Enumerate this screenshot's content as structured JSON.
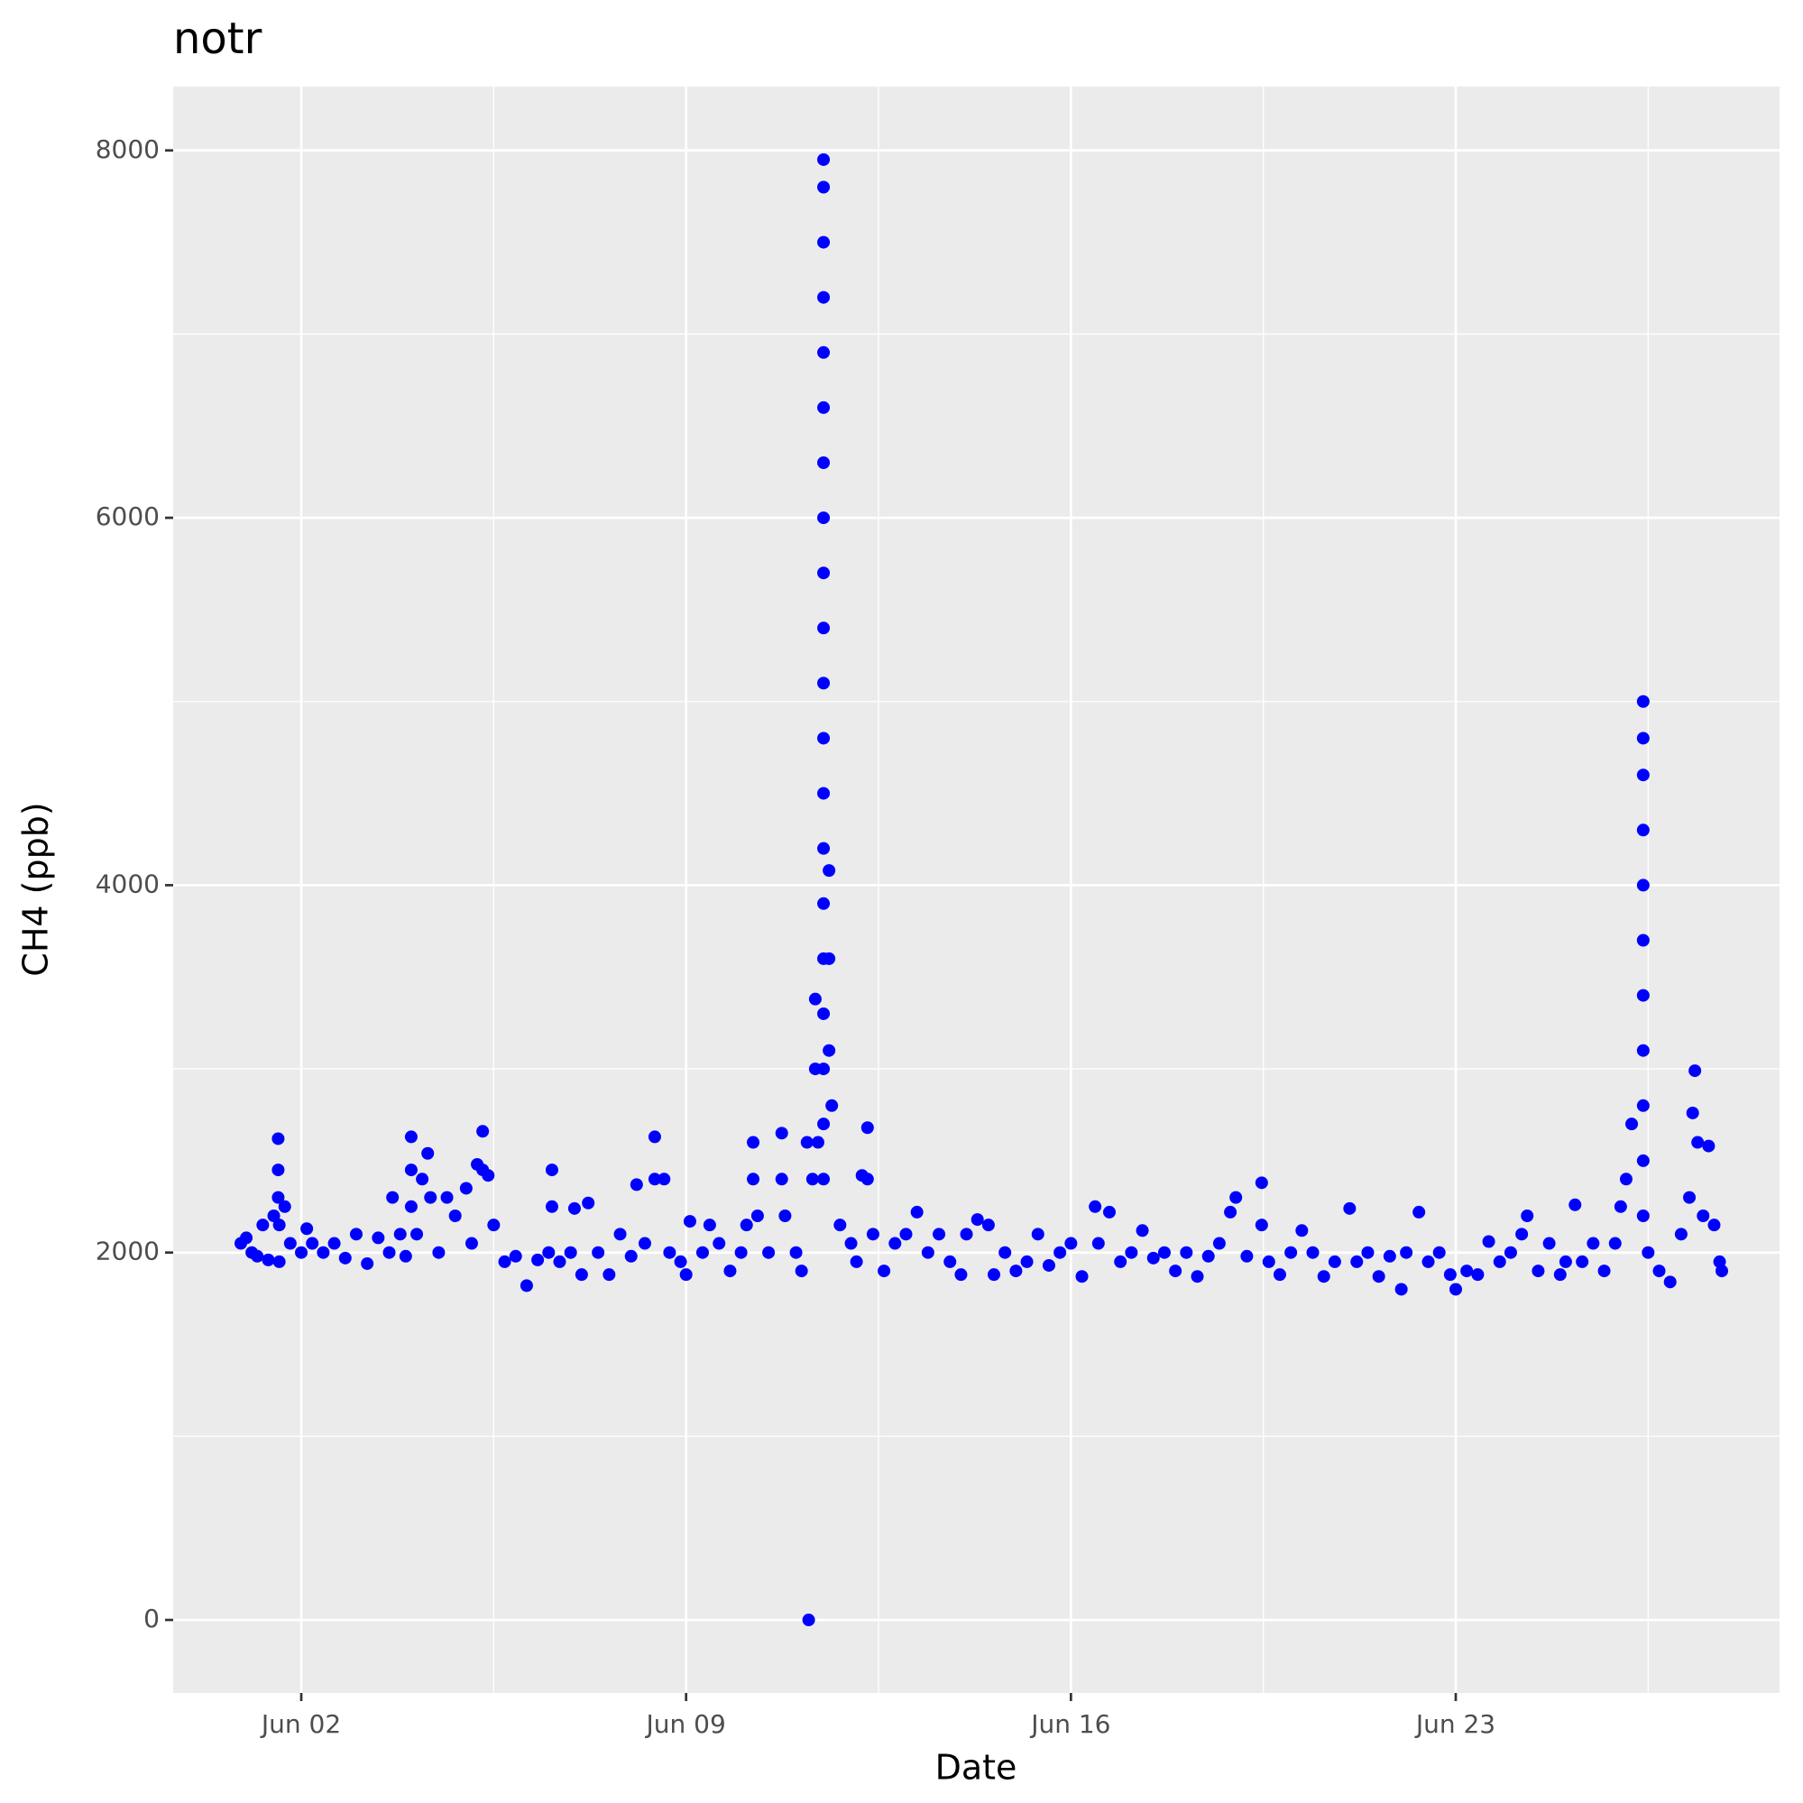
{
  "chart_data": {
    "type": "scatter",
    "title": "notr",
    "x_label": "Date",
    "y_label": "CH4 (ppb)",
    "color": "#0000ff",
    "grid": true,
    "xlim": [
      -0.33,
      28.89
    ],
    "ylim": [
      -397.5,
      8347.5
    ],
    "xticks": [
      {
        "value": 2,
        "label": "Jun 02"
      },
      {
        "value": 9,
        "label": "Jun 09"
      },
      {
        "value": 16,
        "label": "Jun 16"
      },
      {
        "value": 23,
        "label": "Jun 23"
      }
    ],
    "xminor": [
      5.5,
      12.5,
      19.5,
      26.5
    ],
    "yticks": [
      0,
      2000,
      4000,
      6000,
      8000
    ],
    "yminor": [
      1000,
      3000,
      5000,
      7000
    ],
    "x": [
      0.9,
      1.0,
      1.1,
      1.2,
      1.3,
      1.4,
      1.5,
      1.58,
      1.58,
      1.58,
      1.6,
      1.6,
      1.7,
      1.8,
      2.0,
      2.1,
      2.2,
      2.4,
      2.6,
      2.8,
      3.0,
      3.2,
      3.4,
      3.6,
      3.66,
      3.8,
      3.9,
      4.0,
      4.0,
      4.0,
      4.1,
      4.2,
      4.3,
      4.35,
      4.5,
      4.65,
      4.8,
      5.0,
      5.1,
      5.2,
      5.3,
      5.3,
      5.4,
      5.5,
      5.7,
      5.9,
      6.1,
      6.3,
      6.5,
      6.56,
      6.56,
      6.7,
      6.9,
      6.97,
      7.1,
      7.22,
      7.4,
      7.6,
      7.8,
      8.0,
      8.1,
      8.25,
      8.43,
      8.43,
      8.6,
      8.7,
      8.9,
      9.0,
      9.07,
      9.3,
      9.43,
      9.6,
      9.8,
      10.0,
      10.1,
      10.22,
      10.22,
      10.3,
      10.5,
      10.74,
      10.74,
      10.8,
      11.0,
      11.1,
      11.2,
      11.23,
      11.3,
      11.35,
      11.35,
      11.4,
      11.5,
      11.5,
      11.5,
      11.5,
      11.5,
      11.5,
      11.5,
      11.5,
      11.5,
      11.5,
      11.5,
      11.5,
      11.5,
      11.5,
      11.5,
      11.5,
      11.5,
      11.5,
      11.5,
      11.5,
      11.6,
      11.6,
      11.6,
      11.65,
      11.8,
      12.0,
      12.1,
      12.2,
      12.3,
      12.3,
      12.4,
      12.6,
      12.8,
      13.0,
      13.2,
      13.4,
      13.6,
      13.8,
      14.0,
      14.1,
      14.3,
      14.5,
      14.6,
      14.8,
      15.0,
      15.2,
      15.4,
      15.6,
      15.8,
      16.0,
      16.2,
      16.44,
      16.5,
      16.7,
      16.9,
      17.1,
      17.3,
      17.5,
      17.7,
      17.9,
      18.1,
      18.3,
      18.5,
      18.7,
      18.9,
      19.0,
      19.2,
      19.47,
      19.47,
      19.6,
      19.8,
      20.0,
      20.2,
      20.4,
      20.6,
      20.8,
      21.07,
      21.2,
      21.4,
      21.6,
      21.8,
      22.01,
      22.1,
      22.33,
      22.5,
      22.7,
      22.9,
      23.0,
      23.2,
      23.4,
      23.6,
      23.8,
      24.0,
      24.2,
      24.3,
      24.5,
      24.7,
      24.9,
      25.0,
      25.17,
      25.3,
      25.5,
      25.7,
      25.9,
      26.0,
      26.1,
      26.2,
      26.41,
      26.41,
      26.41,
      26.41,
      26.41,
      26.41,
      26.41,
      26.41,
      26.41,
      26.41,
      26.41,
      26.5,
      26.7,
      26.9,
      27.1,
      27.25,
      27.31,
      27.35,
      27.4,
      27.5,
      27.6,
      27.7,
      27.8,
      27.84
    ],
    "values": [
      2050,
      2080,
      2000,
      1980,
      2150,
      1960,
      2200,
      2620,
      2450,
      2300,
      2150,
      1950,
      2250,
      2050,
      2000,
      2130,
      2050,
      2000,
      2050,
      1970,
      2100,
      1940,
      2080,
      2000,
      2300,
      2100,
      1980,
      2630,
      2450,
      2250,
      2100,
      2400,
      2540,
      2300,
      2000,
      2300,
      2200,
      2350,
      2050,
      2480,
      2660,
      2450,
      2420,
      2150,
      1950,
      1980,
      1820,
      1960,
      2000,
      2450,
      2250,
      1950,
      2000,
      2240,
      1880,
      2270,
      2000,
      1880,
      2100,
      1980,
      2370,
      2050,
      2630,
      2400,
      2400,
      2000,
      1950,
      1880,
      2170,
      2000,
      2150,
      2050,
      1900,
      2000,
      2150,
      2600,
      2400,
      2200,
      2000,
      2650,
      2400,
      2200,
      2000,
      1900,
      2600,
      0,
      2400,
      3380,
      3000,
      2600,
      2400,
      2700,
      3000,
      3300,
      3600,
      3900,
      4200,
      4500,
      4800,
      5100,
      5400,
      5700,
      6000,
      6300,
      6600,
      6900,
      7200,
      7500,
      7800,
      7950,
      4080,
      3600,
      3100,
      2800,
      2150,
      2050,
      1950,
      2420,
      2680,
      2400,
      2100,
      1900,
      2050,
      2100,
      2220,
      2000,
      2100,
      1950,
      1880,
      2100,
      2180,
      2150,
      1880,
      2000,
      1900,
      1950,
      2100,
      1930,
      2000,
      2050,
      1870,
      2250,
      2050,
      2220,
      1950,
      2000,
      2120,
      1970,
      2000,
      1900,
      2000,
      1870,
      1980,
      2050,
      2220,
      2300,
      1980,
      2380,
      2150,
      1950,
      1880,
      2000,
      2120,
      2000,
      1870,
      1950,
      2240,
      1950,
      2000,
      1870,
      1980,
      1800,
      2000,
      2220,
      1950,
      2000,
      1880,
      1800,
      1900,
      1880,
      2060,
      1950,
      2000,
      2100,
      2200,
      1900,
      2050,
      1880,
      1950,
      2260,
      1950,
      2050,
      1900,
      2050,
      2250,
      2400,
      2700,
      2200,
      2500,
      2800,
      3100,
      3400,
      3700,
      4000,
      4300,
      4600,
      4800,
      5000,
      2000,
      1900,
      1840,
      2100,
      2300,
      2760,
      2990,
      2600,
      2200,
      2580,
      2150,
      1950,
      1900
    ]
  }
}
